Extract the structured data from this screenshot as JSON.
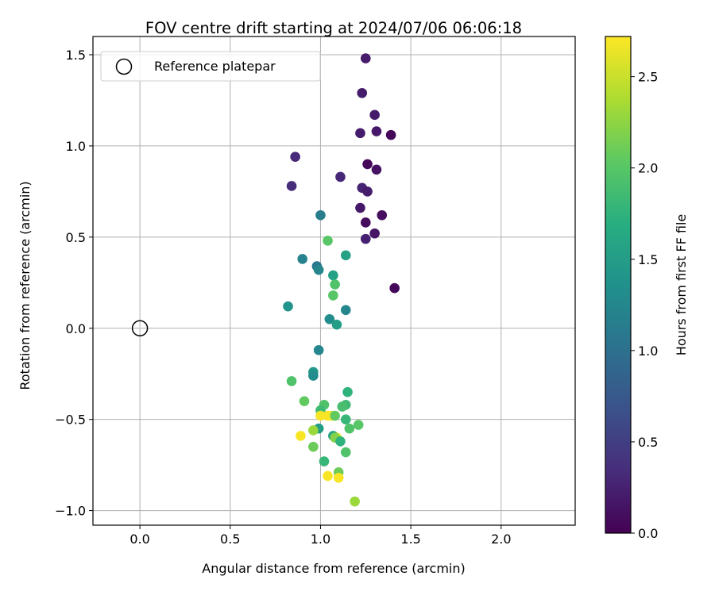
{
  "chart_data": {
    "type": "scatter",
    "title": "FOV centre drift starting at 2024/07/06 06:06:18",
    "xlabel": "Angular distance from reference (arcmin)",
    "ylabel": "Rotation from reference (arcmin)",
    "xlim": [
      -0.26,
      2.41
    ],
    "ylim": [
      -1.08,
      1.6
    ],
    "x_ticks": [
      0.0,
      0.5,
      1.0,
      1.5,
      2.0
    ],
    "y_ticks": [
      -1.0,
      -0.5,
      0.0,
      0.5,
      1.0,
      1.5
    ],
    "grid": true,
    "legend": {
      "placement": "top-left",
      "entries": [
        {
          "label": "Reference platepar",
          "marker": "open-circle"
        }
      ]
    },
    "reference_point": {
      "x": 0.0,
      "y": 0.0
    },
    "colorbar": {
      "label": "Hours from first FF file",
      "colormap": "viridis",
      "range": [
        0.0,
        2.72
      ],
      "ticks": [
        0.0,
        0.5,
        1.0,
        1.5,
        2.0,
        2.5
      ]
    },
    "points": [
      {
        "x": 1.25,
        "y": 1.48,
        "c": 0.2
      },
      {
        "x": 1.23,
        "y": 1.29,
        "c": 0.22
      },
      {
        "x": 1.3,
        "y": 1.17,
        "c": 0.2
      },
      {
        "x": 1.22,
        "y": 1.07,
        "c": 0.2
      },
      {
        "x": 1.31,
        "y": 1.08,
        "c": 0.18
      },
      {
        "x": 1.39,
        "y": 1.06,
        "c": 0.05
      },
      {
        "x": 0.86,
        "y": 0.94,
        "c": 0.32
      },
      {
        "x": 1.26,
        "y": 0.9,
        "c": 0.05
      },
      {
        "x": 1.31,
        "y": 0.87,
        "c": 0.12
      },
      {
        "x": 1.11,
        "y": 0.83,
        "c": 0.3
      },
      {
        "x": 0.84,
        "y": 0.78,
        "c": 0.35
      },
      {
        "x": 1.23,
        "y": 0.77,
        "c": 0.28
      },
      {
        "x": 1.26,
        "y": 0.75,
        "c": 0.22
      },
      {
        "x": 1.22,
        "y": 0.66,
        "c": 0.18
      },
      {
        "x": 1.34,
        "y": 0.62,
        "c": 0.1
      },
      {
        "x": 1.25,
        "y": 0.58,
        "c": 0.08
      },
      {
        "x": 1.3,
        "y": 0.52,
        "c": 0.15
      },
      {
        "x": 1.25,
        "y": 0.49,
        "c": 0.25
      },
      {
        "x": 1.41,
        "y": 0.22,
        "c": 0.05
      },
      {
        "x": 1.0,
        "y": 0.62,
        "c": 1.15
      },
      {
        "x": 1.04,
        "y": 0.48,
        "c": 2.0
      },
      {
        "x": 1.14,
        "y": 0.4,
        "c": 1.55
      },
      {
        "x": 0.9,
        "y": 0.38,
        "c": 1.2
      },
      {
        "x": 0.98,
        "y": 0.34,
        "c": 1.1
      },
      {
        "x": 0.99,
        "y": 0.32,
        "c": 1.25
      },
      {
        "x": 1.07,
        "y": 0.29,
        "c": 1.55
      },
      {
        "x": 1.08,
        "y": 0.24,
        "c": 1.95
      },
      {
        "x": 1.07,
        "y": 0.18,
        "c": 2.0
      },
      {
        "x": 0.82,
        "y": 0.12,
        "c": 1.4
      },
      {
        "x": 1.14,
        "y": 0.1,
        "c": 1.25
      },
      {
        "x": 1.05,
        "y": 0.05,
        "c": 1.3
      },
      {
        "x": 1.09,
        "y": 0.02,
        "c": 1.5
      },
      {
        "x": 0.99,
        "y": -0.12,
        "c": 1.25
      },
      {
        "x": 0.96,
        "y": -0.24,
        "c": 1.45
      },
      {
        "x": 0.96,
        "y": -0.26,
        "c": 1.3
      },
      {
        "x": 0.84,
        "y": -0.29,
        "c": 1.95
      },
      {
        "x": 1.15,
        "y": -0.35,
        "c": 1.75
      },
      {
        "x": 0.91,
        "y": -0.4,
        "c": 2.05
      },
      {
        "x": 1.02,
        "y": -0.42,
        "c": 1.95
      },
      {
        "x": 1.14,
        "y": -0.42,
        "c": 1.85
      },
      {
        "x": 1.12,
        "y": -0.43,
        "c": 1.9
      },
      {
        "x": 1.0,
        "y": -0.45,
        "c": 1.85
      },
      {
        "x": 1.0,
        "y": -0.48,
        "c": 2.7
      },
      {
        "x": 1.06,
        "y": -0.48,
        "c": 2.65
      },
      {
        "x": 1.04,
        "y": -0.48,
        "c": 2.7
      },
      {
        "x": 1.08,
        "y": -0.48,
        "c": 2.05
      },
      {
        "x": 1.14,
        "y": -0.5,
        "c": 1.8
      },
      {
        "x": 1.21,
        "y": -0.53,
        "c": 2.0
      },
      {
        "x": 1.16,
        "y": -0.55,
        "c": 1.95
      },
      {
        "x": 0.99,
        "y": -0.55,
        "c": 1.5
      },
      {
        "x": 0.96,
        "y": -0.56,
        "c": 2.3
      },
      {
        "x": 0.89,
        "y": -0.59,
        "c": 2.7
      },
      {
        "x": 1.07,
        "y": -0.59,
        "c": 1.55
      },
      {
        "x": 1.09,
        "y": -0.6,
        "c": 2.6
      },
      {
        "x": 1.08,
        "y": -0.6,
        "c": 2.2
      },
      {
        "x": 1.11,
        "y": -0.62,
        "c": 1.75
      },
      {
        "x": 0.96,
        "y": -0.65,
        "c": 2.1
      },
      {
        "x": 1.14,
        "y": -0.68,
        "c": 1.95
      },
      {
        "x": 1.02,
        "y": -0.73,
        "c": 1.8
      },
      {
        "x": 1.1,
        "y": -0.79,
        "c": 2.1
      },
      {
        "x": 1.04,
        "y": -0.81,
        "c": 2.7
      },
      {
        "x": 1.1,
        "y": -0.82,
        "c": 2.7
      },
      {
        "x": 1.19,
        "y": -0.95,
        "c": 2.3
      }
    ]
  }
}
